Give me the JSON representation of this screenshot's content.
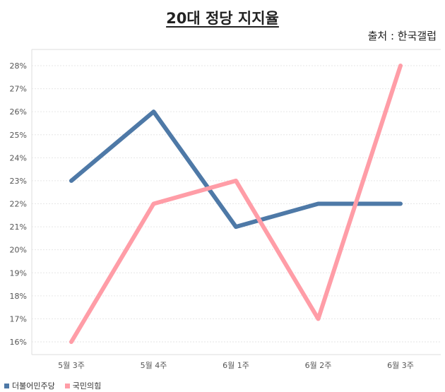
{
  "title": "20대 정당 지지율",
  "source": "출처 : 한국갤럽",
  "colors": {
    "series1": "#4e79a7",
    "series2": "#ff9da7",
    "grid": "#e6e6e6",
    "tick": "#555555"
  },
  "chart_data": {
    "type": "line",
    "title": "20대 정당 지지율",
    "categories": [
      "5월 3주",
      "5월 4주",
      "6월 1주",
      "6월 2주",
      "6월 3주"
    ],
    "ylim": [
      16,
      28
    ],
    "y_ticks": [
      "16%",
      "17%",
      "18%",
      "19%",
      "20%",
      "21%",
      "22%",
      "23%",
      "24%",
      "25%",
      "26%",
      "27%",
      "28%"
    ],
    "grid": true,
    "legend": "bottom-left",
    "series": [
      {
        "name": "더불어민주당",
        "values": [
          23,
          26,
          21,
          22,
          22
        ]
      },
      {
        "name": "국민의힘",
        "values": [
          16,
          22,
          23,
          17,
          28
        ]
      }
    ]
  }
}
